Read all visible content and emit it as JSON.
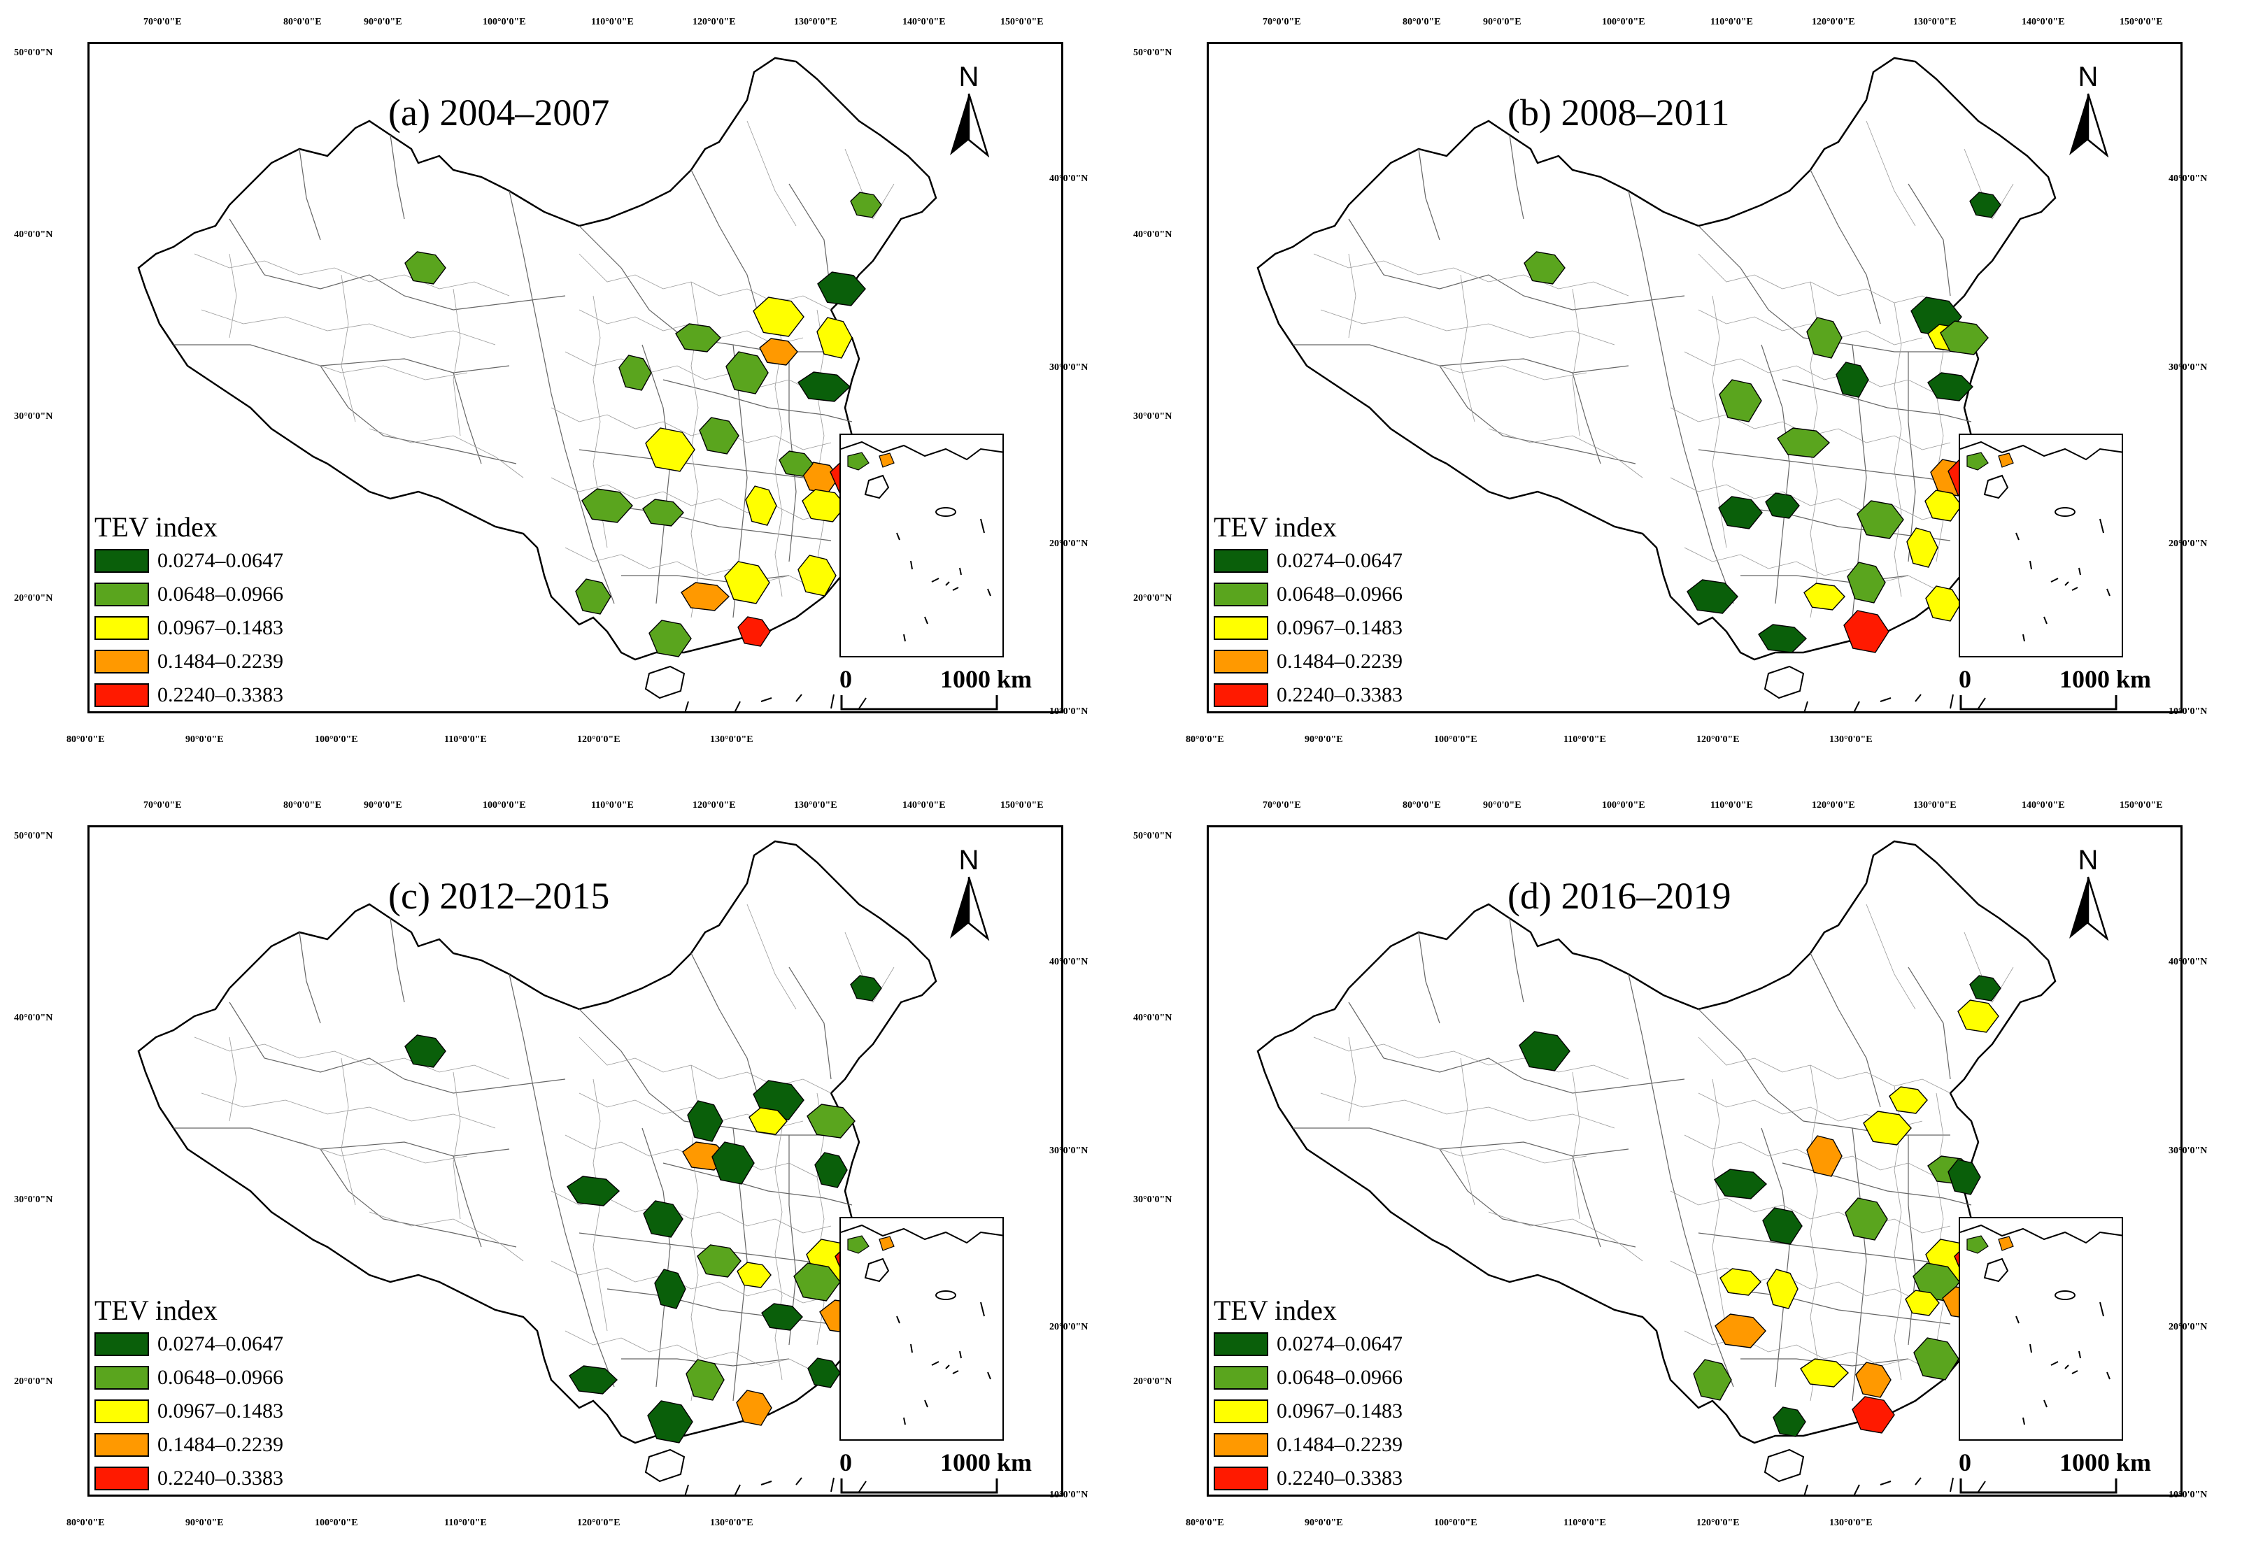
{
  "legend": {
    "title": "TEV index",
    "classes": [
      {
        "label": "0.0274–0.0647",
        "color": "#0a5f0a"
      },
      {
        "label": "0.0648–0.0966",
        "color": "#5aa51e"
      },
      {
        "label": "0.0967–0.1483",
        "color": "#ffff00"
      },
      {
        "label": "0.1484–0.2239",
        "color": "#ff9900"
      },
      {
        "label": "0.2240–0.3383",
        "color": "#ff1a00"
      }
    ]
  },
  "north_label": "N",
  "scale": {
    "start": "0",
    "end": "1000 km"
  },
  "axes": {
    "top_lon": [
      "70°0'0\"E",
      "80°0'0\"E",
      "90°0'0\"E",
      "100°0'0\"E",
      "110°0'0\"E",
      "120°0'0\"E",
      "130°0'0\"E",
      "140°0'0\"E",
      "150°0'0\"E"
    ],
    "bottom_lon": [
      "80°0'0\"E",
      "90°0'0\"E",
      "100°0'0\"E",
      "110°0'0\"E",
      "120°0'0\"E",
      "130°0'0\"E"
    ],
    "left_lat": [
      "50°0'0\"N",
      "40°0'0\"N",
      "30°0'0\"N",
      "20°0'0\"N"
    ],
    "right_lat": [
      "40°0'0\"N",
      "30°0'0\"N",
      "20°0'0\"N",
      "10°0'0\"N"
    ]
  },
  "panels": [
    {
      "title": "(a) 2004–2007"
    },
    {
      "title": "(b) 2008–2011"
    },
    {
      "title": "(c) 2012–2015"
    },
    {
      "title": "(d) 2016–2019"
    }
  ],
  "region_sets": {
    "a": [
      [
        "#5aa51e",
        1110,
        230
      ],
      [
        "#5aa51e",
        480,
        320
      ],
      [
        "#ffff00",
        985,
        390
      ],
      [
        "#ff9900",
        985,
        440
      ],
      [
        "#0a5f0a",
        1075,
        350
      ],
      [
        "#ffff00",
        1065,
        420
      ],
      [
        "#5aa51e",
        870,
        420
      ],
      [
        "#5aa51e",
        780,
        470
      ],
      [
        "#5aa51e",
        940,
        470
      ],
      [
        "#0a5f0a",
        1050,
        490
      ],
      [
        "#5aa51e",
        900,
        560
      ],
      [
        "#ffff00",
        830,
        580
      ],
      [
        "#ff9900",
        1045,
        620
      ],
      [
        "#ff1a00",
        1092,
        620
      ],
      [
        "#5aa51e",
        1010,
        600
      ],
      [
        "#ffff00",
        1050,
        660
      ],
      [
        "#ffff00",
        960,
        660
      ],
      [
        "#5aa51e",
        820,
        670
      ],
      [
        "#5aa51e",
        740,
        660
      ],
      [
        "#ffff00",
        1040,
        760
      ],
      [
        "#ff9900",
        880,
        790
      ],
      [
        "#5aa51e",
        720,
        790
      ],
      [
        "#ffff00",
        940,
        770
      ],
      [
        "#ff1a00",
        950,
        840
      ],
      [
        "#5aa51e",
        830,
        850
      ]
    ],
    "b": [
      [
        "#0a5f0a",
        1110,
        230
      ],
      [
        "#5aa51e",
        480,
        320
      ],
      [
        "#0a5f0a",
        1040,
        390
      ],
      [
        "#ffff00",
        1055,
        420
      ],
      [
        "#5aa51e",
        1080,
        420
      ],
      [
        "#5aa51e",
        880,
        420
      ],
      [
        "#0a5f0a",
        1060,
        490
      ],
      [
        "#0a5f0a",
        920,
        480
      ],
      [
        "#5aa51e",
        760,
        510
      ],
      [
        "#5aa51e",
        850,
        570
      ],
      [
        "#ff9900",
        1060,
        620
      ],
      [
        "#ff1a00",
        1092,
        620
      ],
      [
        "#ffff00",
        1050,
        660
      ],
      [
        "#5aa51e",
        960,
        680
      ],
      [
        "#0a5f0a",
        820,
        660
      ],
      [
        "#0a5f0a",
        760,
        670
      ],
      [
        "#ffff00",
        1020,
        720
      ],
      [
        "#ffff00",
        880,
        790
      ],
      [
        "#0a5f0a",
        720,
        790
      ],
      [
        "#5aa51e",
        940,
        770
      ],
      [
        "#0a5f0a",
        820,
        850
      ],
      [
        "#ffff00",
        1050,
        800
      ],
      [
        "#ff1a00",
        940,
        840
      ]
    ],
    "c": [
      [
        "#0a5f0a",
        1110,
        230
      ],
      [
        "#0a5f0a",
        480,
        320
      ],
      [
        "#0a5f0a",
        985,
        390
      ],
      [
        "#ffff00",
        970,
        420
      ],
      [
        "#5aa51e",
        1060,
        420
      ],
      [
        "#0a5f0a",
        880,
        420
      ],
      [
        "#ff9900",
        880,
        470
      ],
      [
        "#0a5f0a",
        1060,
        490
      ],
      [
        "#0a5f0a",
        920,
        480
      ],
      [
        "#0a5f0a",
        720,
        520
      ],
      [
        "#0a5f0a",
        820,
        560
      ],
      [
        "#ffff00",
        1060,
        620
      ],
      [
        "#ff1a00",
        1092,
        620
      ],
      [
        "#5aa51e",
        1040,
        650
      ],
      [
        "#ffff00",
        950,
        640
      ],
      [
        "#5aa51e",
        900,
        620
      ],
      [
        "#0a5f0a",
        830,
        660
      ],
      [
        "#0a5f0a",
        990,
        700
      ],
      [
        "#ff9900",
        1080,
        700
      ],
      [
        "#5aa51e",
        880,
        790
      ],
      [
        "#0a5f0a",
        720,
        790
      ],
      [
        "#ff9900",
        950,
        830
      ],
      [
        "#0a5f0a",
        830,
        850
      ],
      [
        "#0a5f0a",
        1050,
        780
      ]
    ],
    "d": [
      [
        "#0a5f0a",
        1110,
        230
      ],
      [
        "#ffff00",
        1100,
        270
      ],
      [
        "#0a5f0a",
        480,
        320
      ],
      [
        "#ffff00",
        1000,
        390
      ],
      [
        "#ffff00",
        970,
        430
      ],
      [
        "#ff9900",
        880,
        470
      ],
      [
        "#5aa51e",
        1060,
        490
      ],
      [
        "#0a5f0a",
        1080,
        500
      ],
      [
        "#5aa51e",
        940,
        560
      ],
      [
        "#0a5f0a",
        760,
        510
      ],
      [
        "#0a5f0a",
        820,
        570
      ],
      [
        "#ffff00",
        1060,
        620
      ],
      [
        "#ff1a00",
        1092,
        620
      ],
      [
        "#5aa51e",
        1040,
        650
      ],
      [
        "#ffff00",
        1020,
        680
      ],
      [
        "#ff9900",
        1080,
        680
      ],
      [
        "#ffff00",
        820,
        660
      ],
      [
        "#ffff00",
        760,
        650
      ],
      [
        "#ff9900",
        760,
        720
      ],
      [
        "#5aa51e",
        720,
        790
      ],
      [
        "#ffff00",
        880,
        780
      ],
      [
        "#ff9900",
        950,
        790
      ],
      [
        "#5aa51e",
        1040,
        760
      ],
      [
        "#0a5f0a",
        830,
        850
      ],
      [
        "#ff1a00",
        950,
        840
      ]
    ]
  }
}
